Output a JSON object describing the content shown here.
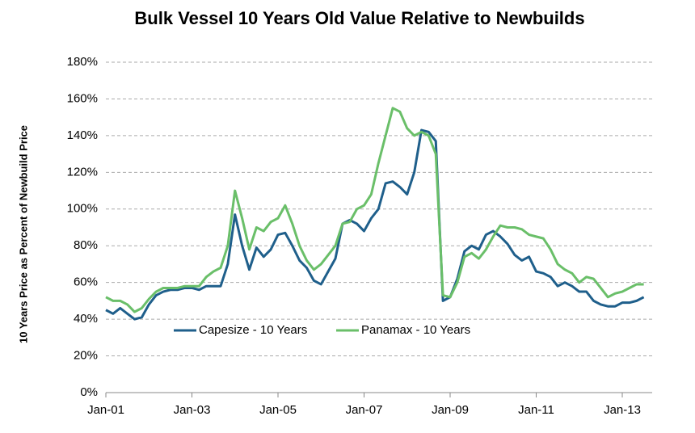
{
  "chart_data": {
    "type": "line",
    "title": "Bulk Vessel 10 Years Old Value Relative to Newbuilds",
    "y_label": "10 Years Price as Percent of Newbuild Price",
    "categories": [
      "Jan-01",
      null,
      null,
      null,
      null,
      null,
      null,
      null,
      null,
      null,
      null,
      null,
      "Jan-03",
      null,
      null,
      null,
      null,
      null,
      null,
      null,
      null,
      null,
      null,
      null,
      "Jan-05",
      null,
      null,
      null,
      null,
      null,
      null,
      null,
      null,
      null,
      null,
      null,
      "Jan-07",
      null,
      null,
      null,
      null,
      null,
      null,
      null,
      null,
      null,
      null,
      null,
      "Jan-09",
      null,
      null,
      null,
      null,
      null,
      null,
      null,
      null,
      null,
      null,
      null,
      "Jan-11",
      null,
      null,
      null,
      null,
      null,
      null,
      null,
      null,
      null,
      null,
      null,
      "Jan-13",
      null,
      null,
      null
    ],
    "series": [
      {
        "name": "Capesize - 10 Years",
        "color": "#1f5f8b",
        "values": [
          45,
          43,
          46,
          43,
          40,
          41,
          48,
          53,
          55,
          56,
          56,
          57,
          57,
          56,
          58,
          58,
          58,
          70,
          97,
          80,
          67,
          79,
          74,
          78,
          86,
          87,
          80,
          72,
          68,
          61,
          59,
          66,
          73,
          92,
          94,
          92,
          88,
          95,
          100,
          114,
          115,
          112,
          108,
          120,
          143,
          142,
          137,
          50,
          52,
          62,
          77,
          80,
          78,
          86,
          88,
          85,
          81,
          75,
          72,
          74,
          66,
          65,
          63,
          58,
          60,
          58,
          55,
          55,
          50,
          48,
          47,
          47,
          49,
          49,
          50,
          52
        ]
      },
      {
        "name": "Panamax - 10 Years",
        "color": "#6abf69",
        "values": [
          52,
          50,
          50,
          48,
          44,
          46,
          51,
          55,
          57,
          57,
          57,
          58,
          58,
          58,
          63,
          66,
          68,
          80,
          110,
          95,
          78,
          90,
          88,
          93,
          95,
          102,
          92,
          80,
          72,
          67,
          70,
          75,
          80,
          92,
          93,
          100,
          102,
          108,
          125,
          140,
          155,
          153,
          144,
          140,
          142,
          140,
          130,
          53,
          52,
          60,
          74,
          76,
          73,
          78,
          85,
          91,
          90,
          90,
          89,
          86,
          85,
          84,
          78,
          70,
          67,
          65,
          60,
          63,
          62,
          57,
          52,
          54,
          55,
          57,
          59,
          59
        ]
      }
    ],
    "ylim": [
      0,
      180
    ],
    "yticks": [
      {
        "value": 0,
        "label": "0%"
      },
      {
        "value": 20,
        "label": "20%"
      },
      {
        "value": 40,
        "label": "40%"
      },
      {
        "value": 60,
        "label": "60%"
      },
      {
        "value": 80,
        "label": "80%"
      },
      {
        "value": 100,
        "label": "100%"
      },
      {
        "value": 120,
        "label": "120%"
      },
      {
        "value": 140,
        "label": "140%"
      },
      {
        "value": 160,
        "label": "160%"
      },
      {
        "value": 180,
        "label": "180%"
      }
    ],
    "grid": true
  }
}
